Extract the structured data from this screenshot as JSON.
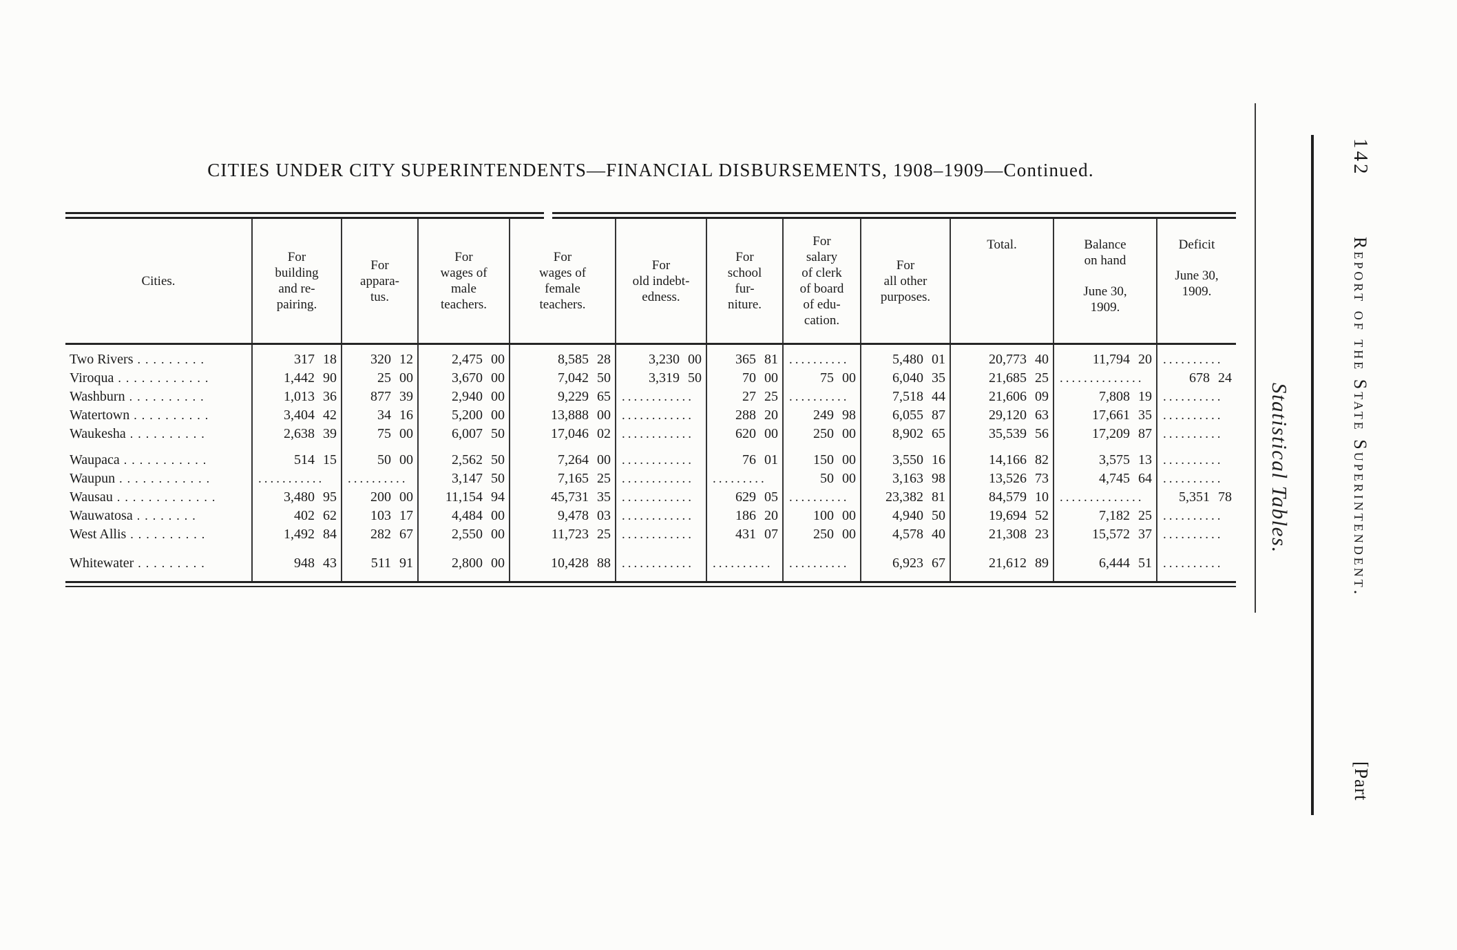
{
  "page": {
    "title": "CITIES UNDER CITY SUPERINTENDENTS—FINANCIAL DISBURSEMENTS, 1908–1909—Continued.",
    "margin_right": {
      "section_label": "Statistical Tables.",
      "page_number": "142",
      "running_header": "Report of the State Superintendent.",
      "part_label": "[Part"
    }
  },
  "table": {
    "columns": [
      {
        "label": "Cities."
      },
      {
        "label": "For\nbuilding\nand re-\npairing."
      },
      {
        "label": "For\nappara-\ntus."
      },
      {
        "label": "For\nwages of\nmale\nteachers."
      },
      {
        "label": "For\nwages of\nfemale\nteachers."
      },
      {
        "label": "For\nold indebt-\nedness."
      },
      {
        "label": "For\nschool\nfur-\nniture."
      },
      {
        "label": "For\nsalary\nof clerk\nof board\nof edu-\ncation."
      },
      {
        "label": "For\nall other\npurposes."
      },
      {
        "label": "Total.",
        "align": "top"
      },
      {
        "label": "Balance\non hand",
        "sublabel": "June 30,\n1909.",
        "align": "top"
      },
      {
        "label": "Deficit",
        "sublabel": "June 30,\n1909.",
        "align": "top"
      }
    ],
    "groups": [
      {
        "rows": [
          {
            "city": "Two Rivers .........",
            "values": [
              "317 18",
              "320 12",
              "2,475 00",
              "8,585 28",
              "3,230 00",
              "365 81",
              "..........",
              "5,480 01",
              "20,773 40",
              "11,794 20",
              ".........."
            ]
          },
          {
            "city": "Viroqua ............",
            "values": [
              "1,442 90",
              "25 00",
              "3,670 00",
              "7,042 50",
              "3,319 50",
              "70 00",
              "75 00",
              "6,040 35",
              "21,685 25",
              "..............",
              "678 24"
            ]
          },
          {
            "city": "Washburn ..........",
            "values": [
              "1,013 36",
              "877 39",
              "2,940 00",
              "9,229 65",
              "............",
              "27 25",
              "..........",
              "7,518 44",
              "21,606 09",
              "7,808 19",
              ".........."
            ]
          },
          {
            "city": "Watertown ..........",
            "values": [
              "3,404 42",
              "34 16",
              "5,200 00",
              "13,888 00",
              "............",
              "288 20",
              "249 98",
              "6,055 87",
              "29,120 63",
              "17,661 35",
              ".........."
            ]
          },
          {
            "city": "Waukesha ..........",
            "values": [
              "2,638 39",
              "75 00",
              "6,007 50",
              "17,046 02",
              "............",
              "620 00",
              "250 00",
              "8,902 65",
              "35,539 56",
              "17,209 87",
              ".........."
            ]
          }
        ]
      },
      {
        "rows": [
          {
            "city": "Waupaca ...........",
            "values": [
              "514 15",
              "50 00",
              "2,562 50",
              "7,264 00",
              "............",
              "76 01",
              "150 00",
              "3,550 16",
              "14,166 82",
              "3,575 13",
              ".........."
            ]
          },
          {
            "city": "Waupun ............",
            "values": [
              "...........",
              "..........",
              "3,147 50",
              "7,165 25",
              "............",
              ".........",
              "50 00",
              "3,163 98",
              "13,526 73",
              "4,745 64",
              ".........."
            ]
          },
          {
            "city": "Wausau .............",
            "values": [
              "3,480 95",
              "200 00",
              "11,154 94",
              "45,731 35",
              "............",
              "629 05",
              "..........",
              "23,382 81",
              "84,579 10",
              "..............",
              "5,351 78"
            ]
          },
          {
            "city": "Wauwatosa ........",
            "values": [
              "402 62",
              "103 17",
              "4,484 00",
              "9,478 03",
              "............",
              "186 20",
              "100 00",
              "4,940 50",
              "19,694 52",
              "7,182 25",
              ".........."
            ]
          },
          {
            "city": "West Allis ..........",
            "values": [
              "1,492 84",
              "282 67",
              "2,550 00",
              "11,723 25",
              "............",
              "431 07",
              "250 00",
              "4,578 40",
              "21,308 23",
              "15,572 37",
              ".........."
            ]
          }
        ]
      },
      {
        "rows": [
          {
            "city": "Whitewater .........",
            "values": [
              "948 43",
              "511 91",
              "2,800 00",
              "10,428 88",
              "............",
              "..........",
              "..........",
              "6,923 67",
              "21,612 89",
              "6,444 51",
              ".........."
            ]
          }
        ]
      }
    ]
  }
}
